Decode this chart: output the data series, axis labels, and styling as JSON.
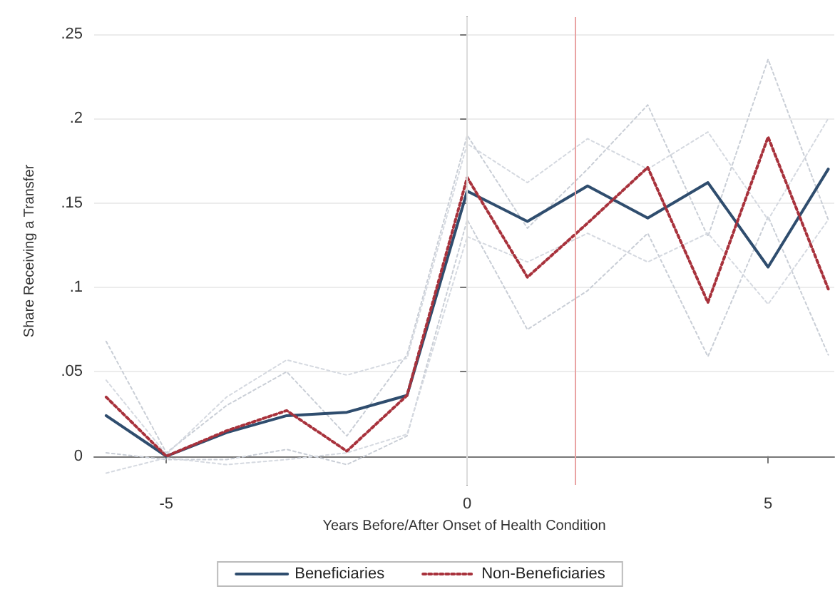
{
  "chart_data": {
    "type": "line",
    "xlabel": "Years Before/After Onset of Health Condition",
    "ylabel": "Share Receiving a Transfer",
    "x": [
      -6,
      -5,
      -4,
      -3,
      -2,
      -1,
      0,
      1,
      2,
      3,
      4,
      5,
      6
    ],
    "series": [
      {
        "color": "#c9ced6",
        "line_style": "dotted",
        "values": [
          0.068,
          0.002,
          0.03,
          0.05,
          0.012,
          0.06,
          0.19,
          0.135,
          0.17,
          0.208,
          0.13,
          0.235,
          0.14
        ]
      },
      {
        "color": "#c9ced6",
        "line_style": "dotted",
        "values": [
          0.002,
          -0.002,
          -0.002,
          0.004,
          -0.005,
          0.012,
          0.14,
          0.075,
          0.098,
          0.132,
          0.059,
          0.142,
          0.06
        ]
      },
      {
        "color": "#d5d9e0",
        "line_style": "dotted",
        "values": [
          0.045,
          0.001,
          0.035,
          0.057,
          0.048,
          0.058,
          0.185,
          0.162,
          0.188,
          0.17,
          0.192,
          0.14,
          0.2
        ]
      },
      {
        "color": "#d5d9e0",
        "line_style": "dotted",
        "values": [
          -0.01,
          -0.001,
          -0.005,
          -0.002,
          0.002,
          0.013,
          0.13,
          0.115,
          0.132,
          0.115,
          0.132,
          0.09,
          0.14
        ]
      },
      {
        "name": "Beneficiaries",
        "color": "#2f4d6e",
        "line_style": "solid",
        "values": [
          0.024,
          0,
          0.014,
          0.024,
          0.026,
          0.036,
          0.157,
          0.139,
          0.16,
          0.141,
          0.162,
          0.112,
          0.17
        ]
      },
      {
        "name": "Non-Beneficiaries",
        "color": "#a8323c",
        "line_style": "dotted",
        "values": [
          0.035,
          0,
          0.015,
          0.027,
          0.003,
          0.036,
          0.165,
          0.106,
          0.138,
          0.171,
          0.091,
          0.189,
          0.099
        ]
      }
    ],
    "xlim": [
      -6.2,
      6.1
    ],
    "xticks": [
      -5,
      0,
      5
    ],
    "ylim": [
      -0.017,
      0.26
    ],
    "yticks": [
      0,
      {
        "value": 0.05,
        "label": ".05"
      },
      {
        "value": 0.1,
        "label": ".1"
      },
      {
        "value": 0.15,
        "label": ".15"
      },
      {
        "value": 0.2,
        "label": ".2"
      },
      {
        "value": 0.25,
        "label": ".25"
      }
    ],
    "ref_lines": [
      {
        "axis": "x",
        "value": 0,
        "color": "#dcdcdc"
      },
      {
        "axis": "x",
        "value": 1.8,
        "color": "#e9a3a3"
      }
    ],
    "grid": "y",
    "legend": "bottom",
    "marker": "none"
  }
}
